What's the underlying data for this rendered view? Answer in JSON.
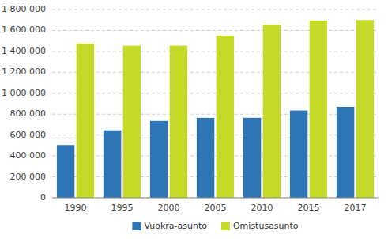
{
  "chart_data": {
    "type": "bar",
    "categories": [
      "1990",
      "1995",
      "2000",
      "2005",
      "2010",
      "2015",
      "2017"
    ],
    "series": [
      {
        "name": "Vuokra-asunto",
        "color": "#2e75b6",
        "values": [
          505000,
          645000,
          735000,
          765000,
          765000,
          835000,
          870000
        ]
      },
      {
        "name": "Omistusasunto",
        "color": "#c5d928",
        "values": [
          1475000,
          1455000,
          1455000,
          1550000,
          1655000,
          1695000,
          1700000
        ]
      }
    ],
    "ylim": [
      0,
      1800000
    ],
    "yticks": [
      0,
      {
        "value": 200000,
        "label": "200 000"
      },
      {
        "value": 400000,
        "label": "400 000"
      },
      {
        "value": 600000,
        "label": "600 000"
      },
      {
        "value": 800000,
        "label": "800 000"
      },
      {
        "value": 1000000,
        "label": "1 000 000"
      },
      {
        "value": 1200000,
        "label": "1 200 000"
      },
      {
        "value": 1400000,
        "label": "1 400 000"
      },
      {
        "value": 1600000,
        "label": "1 600 000"
      },
      {
        "value": 1800000,
        "label": "1 800 000"
      }
    ],
    "grid": true,
    "legend": "bottom"
  }
}
